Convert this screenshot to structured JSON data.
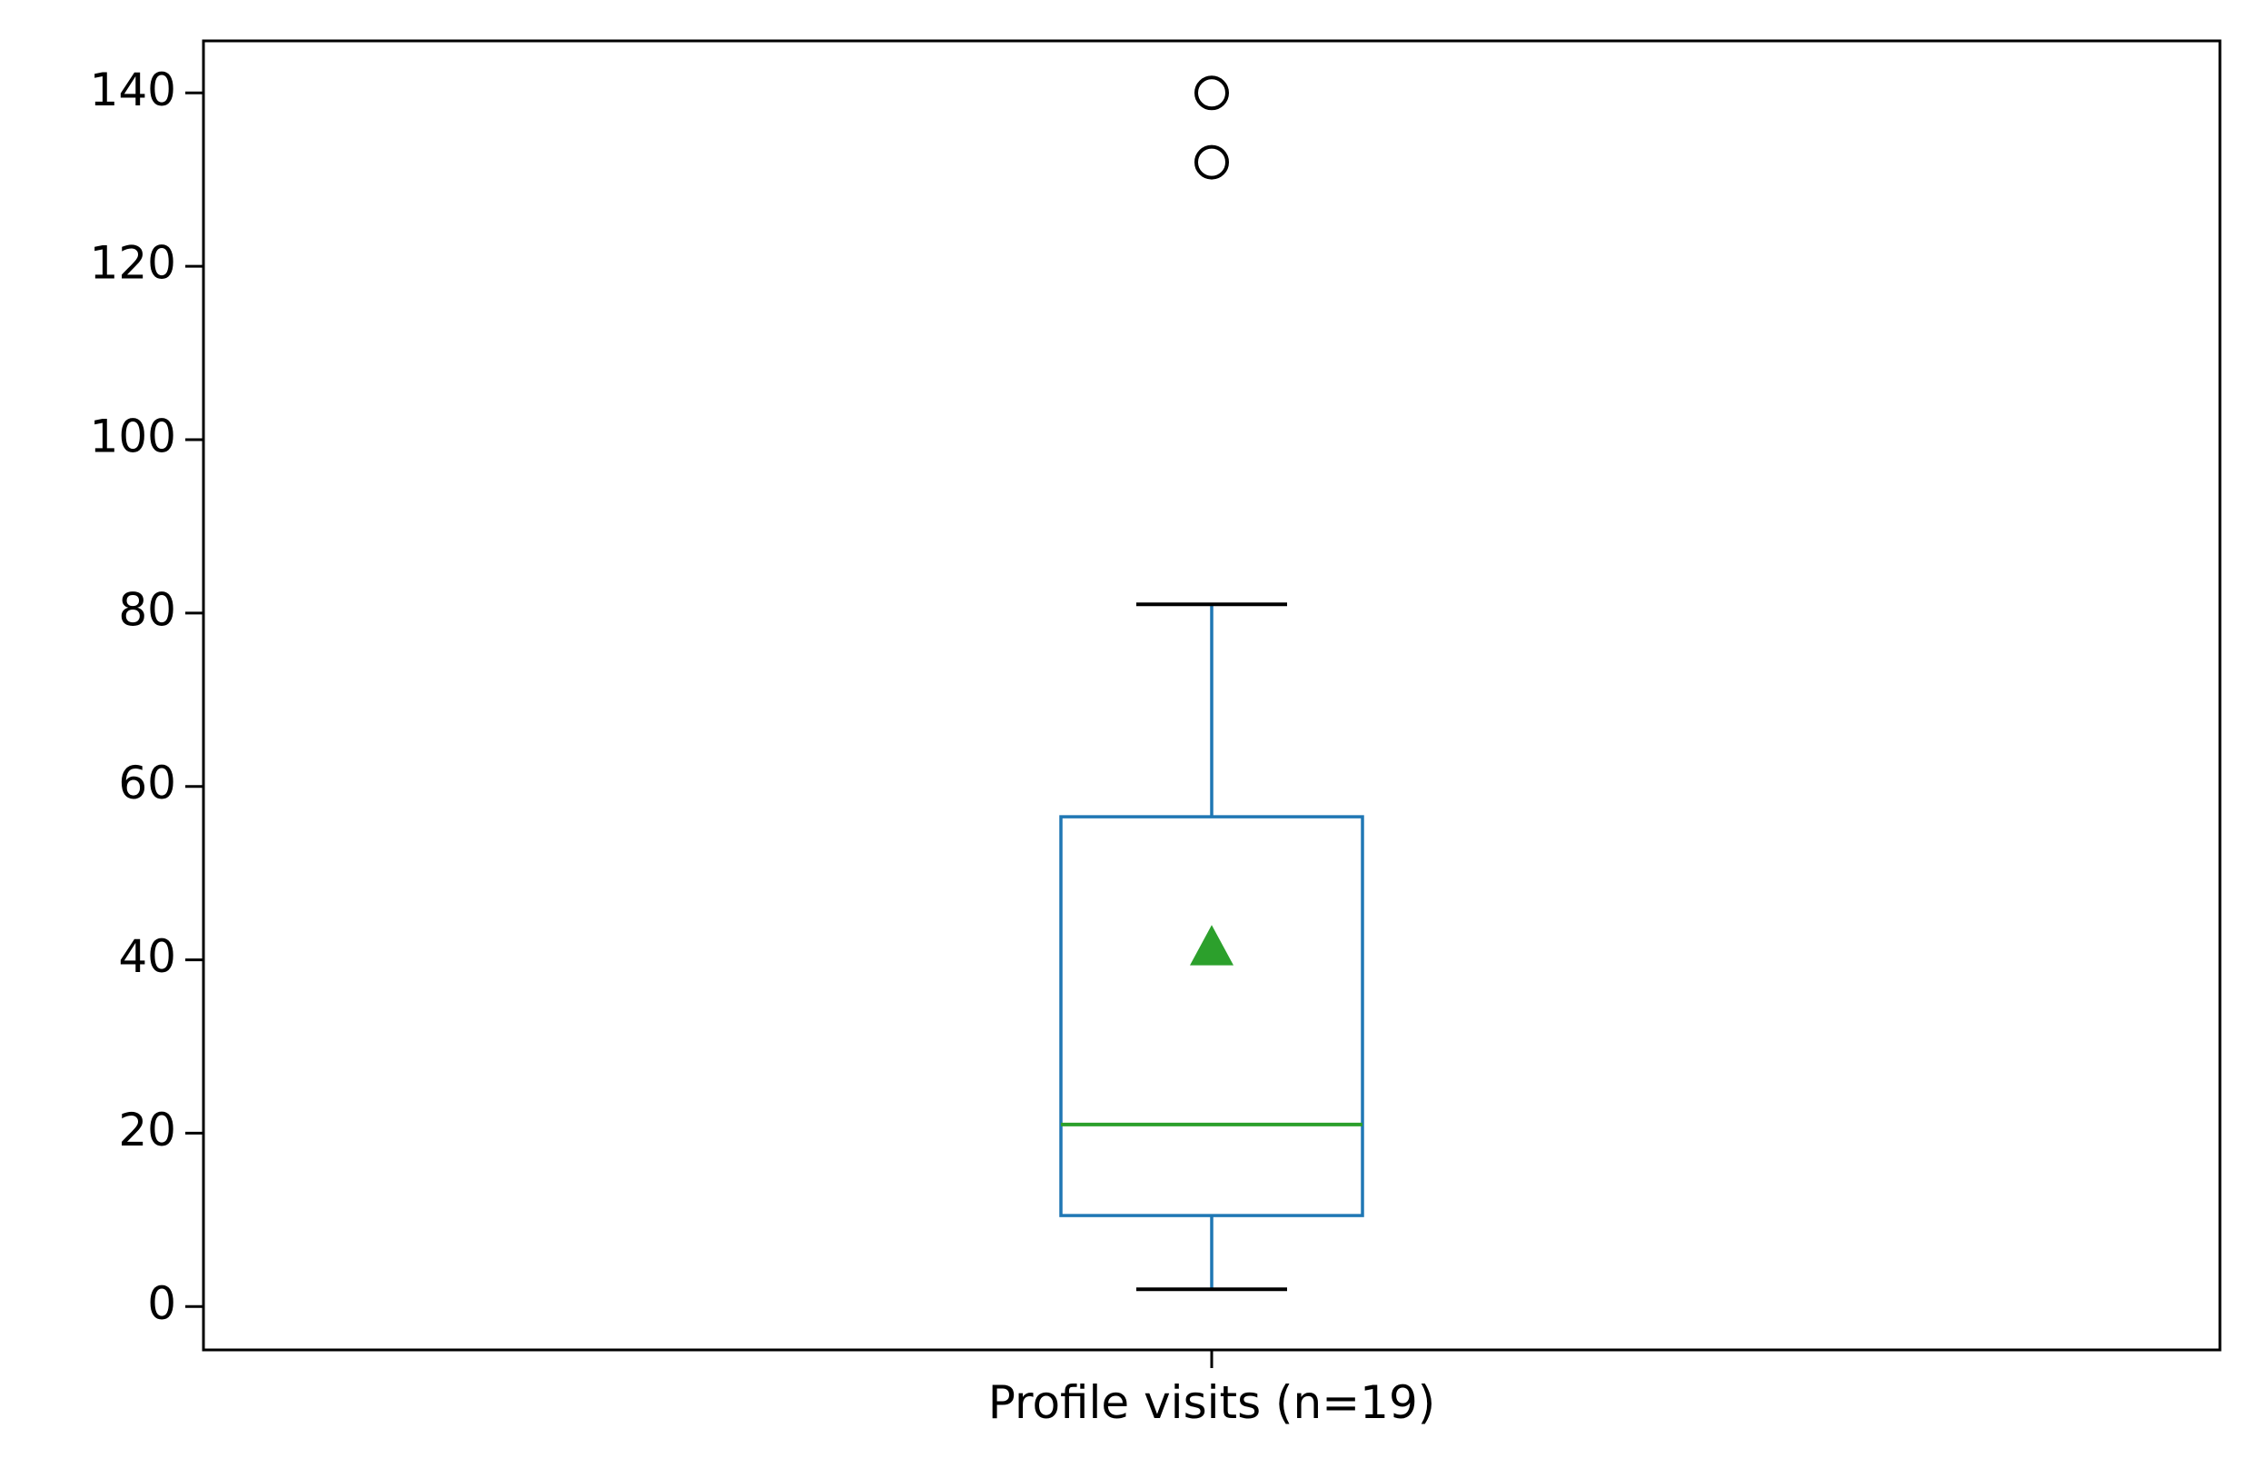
{
  "chart_data": {
    "type": "box",
    "title": "",
    "xlabel": "",
    "ylabel": "",
    "ylim": [
      -5,
      146
    ],
    "yticks": [
      0,
      20,
      40,
      60,
      80,
      100,
      120,
      140
    ],
    "grid": false,
    "legend": "none",
    "categories": [
      "Profile visits (n=19)"
    ],
    "boxes": [
      {
        "category": "Profile visits (n=19)",
        "whisker_low": 2,
        "q1": 10.5,
        "median": 21,
        "q3": 56.5,
        "whisker_high": 81,
        "mean": 41.5,
        "outliers": [
          132,
          140
        ]
      }
    ],
    "colors": {
      "box": "#1f77b4",
      "median": "#2ca02c",
      "mean": "#2ca02c",
      "whisker_cap": "#000000",
      "outlier": "#000000",
      "axes": "#000000"
    }
  }
}
